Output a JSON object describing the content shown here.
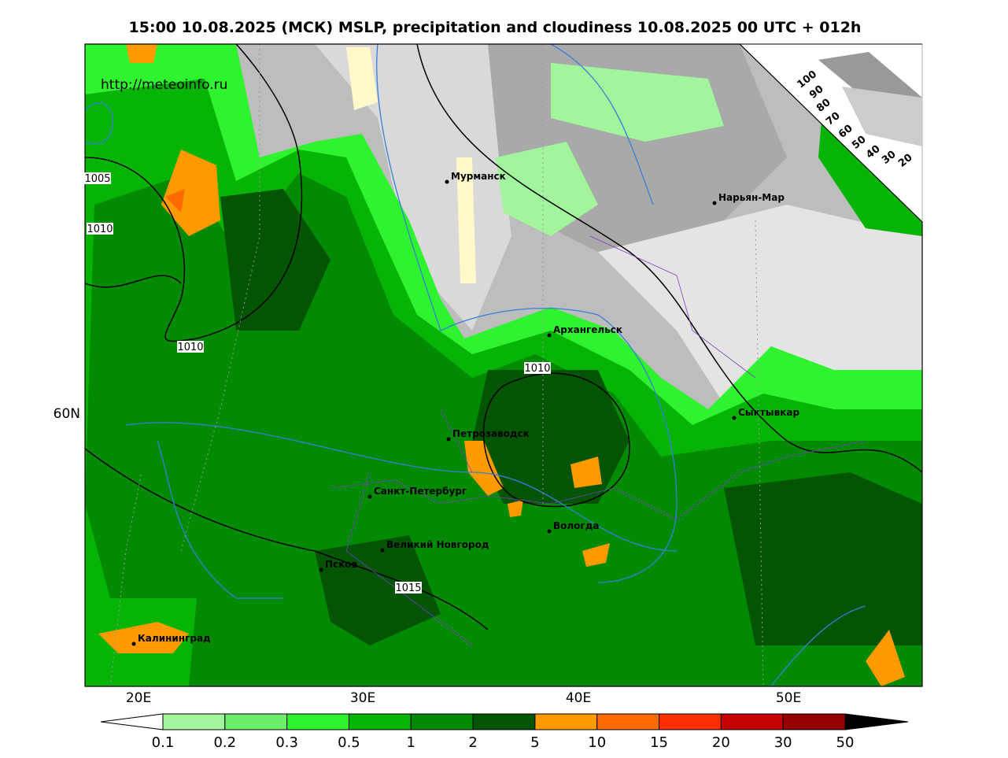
{
  "header": {
    "title": "15:00 10.08.2025 (МСК) MSLP, precipitation and cloudiness 10.08.2025 00 UTC + 012h"
  },
  "map": {
    "url": "http://meteoinfo.ru",
    "cities": [
      "Мурманск",
      "Нарьян-Мар",
      "Архангельск",
      "Петрозаводск",
      "Сыктывкар",
      "Санкт-Петербург",
      "Вологда",
      "Великий Новгород",
      "Псков",
      "Калининград"
    ],
    "isobar_labels": [
      1005,
      1010,
      1010,
      1010,
      1015
    ],
    "longitude_labels": [
      "20E",
      "30E",
      "40E",
      "50E"
    ],
    "latitude_labels": [
      "60N"
    ],
    "cloudiness_scale": [
      100,
      90,
      80,
      70,
      60,
      50,
      40,
      30,
      20
    ]
  },
  "colorbar": {
    "labels": [
      0.1,
      0.2,
      0.3,
      0.5,
      1,
      2,
      5,
      10,
      15,
      20,
      30,
      50
    ],
    "colors": [
      "#a2f59c",
      "#6cee6c",
      "#2ef32e",
      "#06b406",
      "#038a03",
      "#035503",
      "#ff9a00",
      "#ff6a00",
      "#ff2e00",
      "#c40000",
      "#960000"
    ]
  }
}
